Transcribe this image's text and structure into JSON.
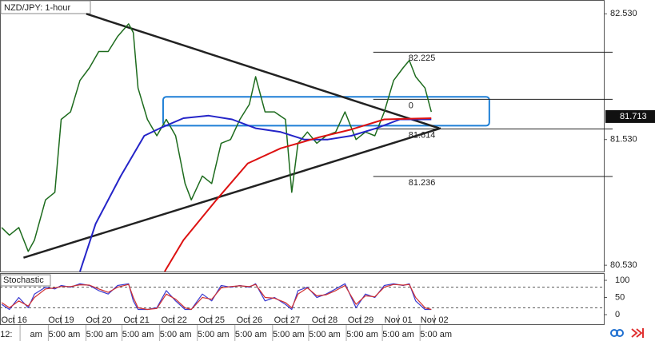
{
  "chart_data": {
    "type": "line",
    "title": "NZD/JPY: 1-hour",
    "xlim": [
      -1,
      384
    ],
    "ylim": [
      80.48,
      82.64
    ],
    "yticks": [
      {
        "value": 82.53,
        "label": "82.530"
      },
      {
        "value": 81.53,
        "label": "81.530"
      },
      {
        "value": 80.53,
        "label": "80.530"
      }
    ],
    "xticks": [
      {
        "value": 8,
        "label": "Oct 16"
      },
      {
        "value": 38,
        "label": "Oct 19"
      },
      {
        "value": 62,
        "label": "Oct 20"
      },
      {
        "value": 86,
        "label": "Oct 21"
      },
      {
        "value": 110,
        "label": "Oct 22"
      },
      {
        "value": 134,
        "label": "Oct 25"
      },
      {
        "value": 158,
        "label": "Oct 26"
      },
      {
        "value": 182,
        "label": "Oct 27"
      },
      {
        "value": 206,
        "label": "Oct 28"
      },
      {
        "value": 229,
        "label": "Oct 29"
      },
      {
        "value": 253,
        "label": "Nov 01"
      },
      {
        "value": 276,
        "label": "Nov 02"
      }
    ],
    "x2ticks": [
      {
        "value": 3,
        "label": "12:"
      },
      {
        "value": 22,
        "label": "am"
      },
      {
        "value": 40,
        "label": "5:00 am"
      },
      {
        "value": 64,
        "label": "5:00 am"
      },
      {
        "value": 87,
        "label": "5:00 am"
      },
      {
        "value": 111,
        "label": "5:00 am"
      },
      {
        "value": 135,
        "label": "5:00 am"
      },
      {
        "value": 159,
        "label": "5:00 am"
      },
      {
        "value": 183,
        "label": "5:00 am"
      },
      {
        "value": 206,
        "label": "5:00 am"
      },
      {
        "value": 230,
        "label": "5:00 am"
      },
      {
        "value": 253,
        "label": "5:00 am"
      },
      {
        "value": 277,
        "label": "5:00 am"
      }
    ],
    "current_price": {
      "value": 81.713,
      "label": "81.713"
    },
    "series": [
      {
        "color": "#1d6b1d",
        "x": [
          0,
          5,
          11,
          17,
          21,
          28,
          34,
          38,
          44,
          50,
          56,
          62,
          68,
          74,
          81,
          84,
          87,
          93,
          99,
          105,
          111,
          117,
          121,
          128,
          134,
          140,
          146,
          152,
          158,
          162,
          168,
          174,
          181,
          185,
          189,
          195,
          201,
          207,
          213,
          219,
          226,
          232,
          238,
          244,
          250,
          256,
          260,
          264,
          270,
          274
        ],
        "values": [
          80.83,
          80.77,
          80.83,
          80.64,
          80.73,
          81.05,
          81.11,
          81.69,
          81.75,
          82.0,
          82.1,
          82.23,
          82.23,
          82.35,
          82.45,
          82.38,
          81.94,
          81.69,
          81.56,
          81.69,
          81.56,
          81.18,
          81.05,
          81.24,
          81.18,
          81.5,
          81.53,
          81.69,
          81.81,
          82.03,
          81.75,
          81.75,
          81.69,
          81.11,
          81.5,
          81.59,
          81.5,
          81.56,
          81.59,
          81.75,
          81.53,
          81.59,
          81.56,
          81.75,
          82.0,
          82.1,
          82.16,
          82.03,
          81.94,
          81.75
        ]
      },
      {
        "color": "#2424c8",
        "x": [
          50,
          60,
          76,
          91,
          101,
          116,
          132,
          147,
          162,
          178,
          193,
          208,
          223,
          239,
          254,
          274
        ],
        "values": [
          80.48,
          80.86,
          81.24,
          81.56,
          81.62,
          81.7,
          81.72,
          81.69,
          81.62,
          81.59,
          81.53,
          81.53,
          81.56,
          81.62,
          81.69,
          81.69
        ]
      },
      {
        "color": "#dd1111",
        "x": [
          104,
          116,
          137,
          157,
          178,
          203,
          223,
          244,
          274
        ],
        "values": [
          80.48,
          80.73,
          81.05,
          81.34,
          81.46,
          81.55,
          81.61,
          81.69,
          81.7
        ]
      }
    ],
    "trendlines": [
      {
        "x": [
          54,
          279
        ],
        "values": [
          82.53,
          81.62
        ]
      },
      {
        "x": [
          14,
          280
        ],
        "values": [
          80.59,
          81.62
        ]
      }
    ],
    "zone": {
      "x": [
        103,
        311
      ],
      "values": [
        81.87,
        81.64
      ],
      "color": "#1e7fd6"
    },
    "fib_range": [
      237,
      390
    ],
    "fib_levels": [
      {
        "value": 82.225,
        "label": "82.225"
      },
      {
        "value": 81.85,
        "label": "0"
      },
      {
        "value": 81.614,
        "label": "81.614"
      },
      {
        "value": 81.236,
        "label": "81.236"
      }
    ],
    "stochastic": {
      "title": "Stochastic",
      "ylim": [
        -14,
        121
      ],
      "yticks": [
        100,
        50,
        0
      ],
      "levels": [
        80,
        20
      ],
      "series": [
        {
          "color": "#3a3ad0",
          "x": [
            0,
            5,
            11,
            17,
            21,
            28,
            34,
            38,
            44,
            50,
            56,
            62,
            68,
            74,
            81,
            84,
            87,
            93,
            99,
            105,
            111,
            117,
            121,
            128,
            134,
            140,
            146,
            152,
            158,
            162,
            168,
            174,
            181,
            185,
            189,
            195,
            201,
            207,
            213,
            219,
            226,
            232,
            238,
            244,
            250,
            256,
            260,
            264,
            270,
            274
          ],
          "values": [
            30,
            15,
            50,
            20,
            60,
            80,
            75,
            85,
            80,
            90,
            85,
            70,
            60,
            85,
            90,
            40,
            15,
            15,
            20,
            70,
            40,
            15,
            15,
            60,
            40,
            85,
            80,
            85,
            80,
            90,
            40,
            50,
            30,
            15,
            70,
            80,
            50,
            60,
            75,
            90,
            20,
            60,
            50,
            85,
            90,
            85,
            90,
            40,
            15,
            15
          ]
        },
        {
          "color": "#d03030",
          "x": [
            0,
            5,
            11,
            17,
            21,
            28,
            34,
            38,
            44,
            50,
            56,
            62,
            68,
            74,
            81,
            84,
            87,
            93,
            99,
            105,
            111,
            117,
            121,
            128,
            134,
            140,
            146,
            152,
            158,
            162,
            168,
            174,
            181,
            185,
            189,
            195,
            201,
            207,
            213,
            219,
            226,
            232,
            238,
            244,
            250,
            256,
            260,
            264,
            270,
            274
          ],
          "values": [
            35,
            20,
            40,
            25,
            50,
            75,
            78,
            82,
            82,
            87,
            86,
            75,
            65,
            80,
            88,
            50,
            20,
            15,
            18,
            60,
            45,
            20,
            15,
            50,
            45,
            78,
            82,
            84,
            82,
            88,
            50,
            48,
            35,
            20,
            60,
            78,
            55,
            58,
            70,
            85,
            30,
            55,
            52,
            80,
            88,
            86,
            88,
            50,
            20,
            15
          ]
        }
      ]
    }
  }
}
